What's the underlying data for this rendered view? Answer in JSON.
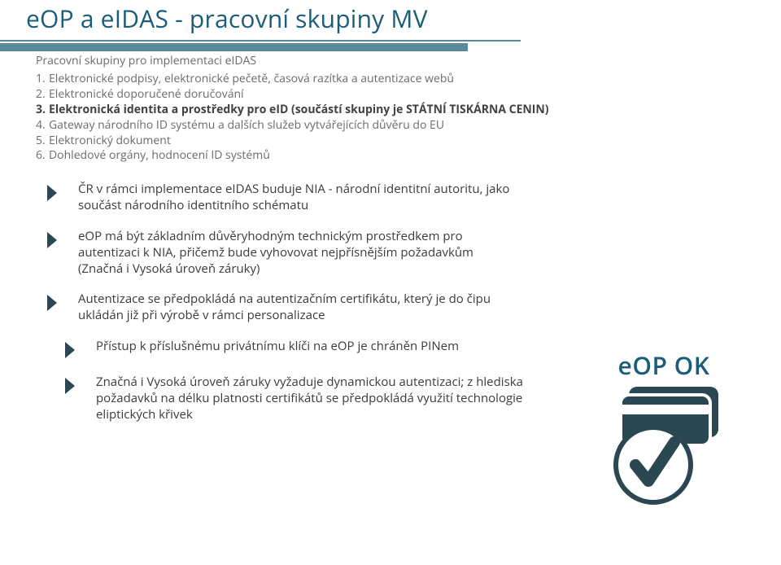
{
  "title": "eOP a eIDAS - pracovní skupiny MV",
  "subheading": "Pracovní skupiny pro implementaci eIDAS",
  "numbered_list": [
    {
      "text": "Elektronické podpisy, elektronické pečetě, časová razítka a autentizace webů",
      "bold": false
    },
    {
      "text": "Elektronické doporučené doručování",
      "bold": false
    },
    {
      "text": "Elektronická identita a prostředky pro eID (součástí skupiny je STÁTNÍ TISKÁRNA CENIN)",
      "bold": true
    },
    {
      "text": "Gateway národního ID systému a dalších služeb vytvářejících důvěru do EU",
      "bold": false
    },
    {
      "text": "Elektronický dokument",
      "bold": false
    },
    {
      "text": "Dohledové orgány, hodnocení ID systémů",
      "bold": false
    }
  ],
  "bullets": [
    {
      "text": "ČR v rámci implementace eIDAS buduje NIA - národní identitní autoritu, jako součást národního identitního schématu",
      "indent": false
    },
    {
      "text": "eOP má být základním důvěryhodným technickým prostředkem pro autentizaci k NIA, přičemž bude vyhovovat  nejpřísnějším požadavkům (Značná i Vysoká úroveň záruky)",
      "indent": false
    },
    {
      "text": "Autentizace se předpokládá na autentizačním certifikátu, který je do čipu ukládán již při výrobě v rámci personalizace",
      "indent": false
    },
    {
      "text": "Přístup k příslušnému privátnímu klíči na eOP je chráněn PINem",
      "indent": true
    },
    {
      "text": "Značná i Vysoká úroveň záruky vyžaduje dynamickou autentizaci; z hlediska požadavků na délku platnosti certifikátů se předpokládá využití technologie eliptických křivek",
      "indent": true
    }
  ],
  "card_label": "eOP OK",
  "colors": {
    "title": "#1a5d7a",
    "underline": "#5a8a9a",
    "bullet_chevron": "#2a4752",
    "text_gray": "#6a6a6a",
    "text_dark": "#3a3a3a",
    "card_fill": "#2a4752"
  }
}
